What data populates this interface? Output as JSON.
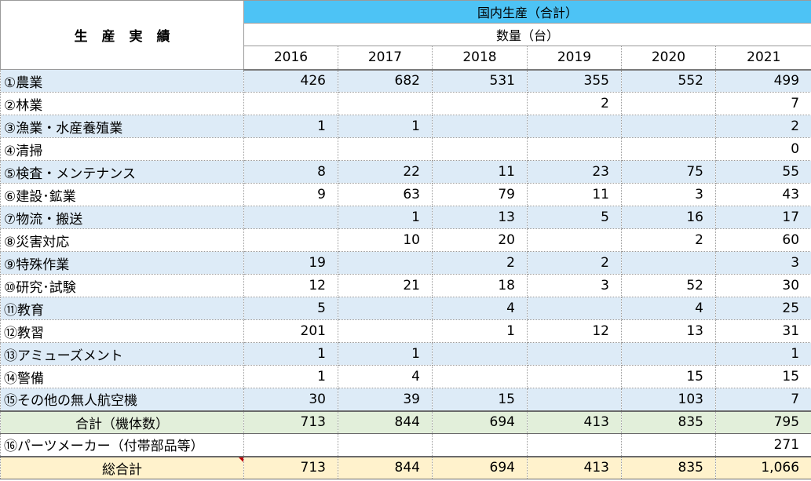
{
  "header": {
    "title": "生産実績",
    "group": "国内生産（合計）",
    "sub": "数量（台）",
    "years": [
      "2016",
      "2017",
      "2018",
      "2019",
      "2020",
      "2021"
    ]
  },
  "rows": [
    {
      "label": "①農業",
      "values": [
        "426",
        "682",
        "531",
        "355",
        "552",
        "499"
      ]
    },
    {
      "label": "②林業",
      "values": [
        "",
        "",
        "",
        "2",
        "",
        "7"
      ]
    },
    {
      "label": "③漁業・水産養殖業",
      "values": [
        "1",
        "1",
        "",
        "",
        "",
        "2"
      ]
    },
    {
      "label": "④清掃",
      "values": [
        "",
        "",
        "",
        "",
        "",
        "0"
      ]
    },
    {
      "label": "⑤検査・メンテナンス",
      "values": [
        "8",
        "22",
        "11",
        "23",
        "75",
        "55"
      ]
    },
    {
      "label": "⑥建設･鉱業",
      "values": [
        "9",
        "63",
        "79",
        "11",
        "3",
        "43"
      ]
    },
    {
      "label": "⑦物流・搬送",
      "values": [
        "",
        "1",
        "13",
        "5",
        "16",
        "17"
      ]
    },
    {
      "label": "⑧災害対応",
      "values": [
        "",
        "10",
        "20",
        "",
        "2",
        "60"
      ]
    },
    {
      "label": "⑨特殊作業",
      "values": [
        "19",
        "",
        "2",
        "2",
        "",
        "3"
      ]
    },
    {
      "label": "⑩研究･試験",
      "values": [
        "12",
        "21",
        "18",
        "3",
        "52",
        "30"
      ]
    },
    {
      "label": "⑪教育",
      "values": [
        "5",
        "",
        "4",
        "",
        "4",
        "25"
      ]
    },
    {
      "label": "⑫教習",
      "values": [
        "201",
        "",
        "1",
        "12",
        "13",
        "31"
      ]
    },
    {
      "label": "⑬アミューズメント",
      "values": [
        "1",
        "1",
        "",
        "",
        "",
        "1"
      ]
    },
    {
      "label": "⑭警備",
      "values": [
        "1",
        "4",
        "",
        "",
        "15",
        "15"
      ]
    },
    {
      "label": "⑮その他の無人航空機",
      "values": [
        "30",
        "39",
        "15",
        "",
        "103",
        "7"
      ]
    }
  ],
  "total": {
    "label": "合計（機体数）",
    "values": [
      "713",
      "844",
      "694",
      "413",
      "835",
      "795"
    ]
  },
  "parts": {
    "label": "⑯パーツメーカー（付帯部品等）",
    "values": [
      "",
      "",
      "",
      "",
      "",
      "271"
    ]
  },
  "grand_total": {
    "label": "総合計",
    "values": [
      "713",
      "844",
      "694",
      "413",
      "835",
      "1,066"
    ]
  }
}
